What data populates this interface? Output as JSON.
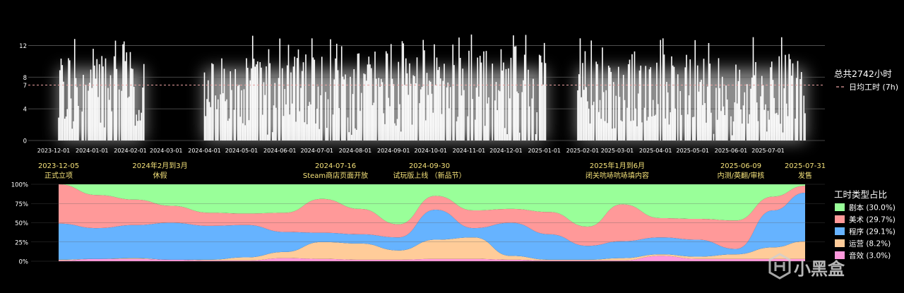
{
  "colors": {
    "background": "#000000",
    "bar": "#ffffff",
    "glow": "#ffffff",
    "grid": "#5a5a5a",
    "avg_line": "#e8a0a0",
    "milestone_text": "#f5e27a",
    "axis_text": "#ffffff"
  },
  "watermark": "小黑盒",
  "chart_data": [
    {
      "type": "bar",
      "title": "",
      "xlabel": "",
      "ylabel": "",
      "ylim": [
        0,
        14
      ],
      "yticks": [
        0,
        4,
        7,
        8,
        12
      ],
      "x_range": [
        "2023-11-15",
        "2025-07-31"
      ],
      "x_tick_labels": [
        "2023-12-01",
        "2024-01-01",
        "2024-02-01",
        "2024-03-01",
        "2024-04-01",
        "2024-05-01",
        "2024-06-01",
        "2024-07-01",
        "2024-08-01",
        "2024-09-01",
        "2024-10-01",
        "2024-11-01",
        "2024-12-01",
        "2025-01-01",
        "2025-02-01",
        "2025-03-01",
        "2025-04-01",
        "2025-05-01",
        "2025-06-01",
        "2025-07-01"
      ],
      "active_periods": [
        [
          "2023-12-05",
          "2024-02-12"
        ],
        [
          "2024-04-01",
          "2025-01-02"
        ],
        [
          "2025-01-28",
          "2025-07-31"
        ]
      ],
      "daily_hours_approx": "bars of 1–13.5 hours per day during active periods",
      "total_label": "总共2742小时",
      "avg_line": {
        "value": 7,
        "label": "日均工时 (7h)"
      },
      "grid": true,
      "legend_position": "right",
      "milestones": [
        {
          "date": "2023-12-05",
          "line1": "2023-12-05",
          "line2": "正式立项"
        },
        {
          "date": "2024-02-25",
          "line1": "2024年2月到3月",
          "line2": "休假"
        },
        {
          "date": "2024-07-16",
          "line1": "2024-07-16",
          "line2": "Steam商店页面开放"
        },
        {
          "date": "2024-09-30",
          "line1": "2024-09-30",
          "line2": "试玩版上线 （新品节）"
        },
        {
          "date": "2025-03-01",
          "line1": "2025年1月到6月",
          "line2": "闭关吭哧吭哧填内容"
        },
        {
          "date": "2025-06-09",
          "line1": "2025-06-09",
          "line2": "内测/英翻/审核"
        },
        {
          "date": "2025-07-31",
          "line1": "2025-07-31",
          "line2": "发售"
        }
      ]
    },
    {
      "type": "area",
      "stacked": "percent",
      "title": "工时类型占比",
      "yticks": [
        "100%",
        "75%",
        "50%",
        "25%",
        "0%"
      ],
      "x": [
        "2023-12-05",
        "2024-01-05",
        "2024-02-05",
        "2024-03-05",
        "2024-04-05",
        "2024-05-05",
        "2024-06-05",
        "2024-07-05",
        "2024-08-05",
        "2024-09-05",
        "2024-10-05",
        "2024-11-05",
        "2024-12-05",
        "2025-01-05",
        "2025-02-05",
        "2025-03-05",
        "2025-04-05",
        "2025-05-05",
        "2025-06-05",
        "2025-07-05",
        "2025-07-31"
      ],
      "series": [
        {
          "name": "音效 (3.0%)",
          "color": "#ff99dd",
          "values": [
            1,
            3,
            3,
            2,
            1,
            1,
            4,
            3,
            2,
            2,
            3,
            3,
            2,
            1,
            1,
            1,
            7,
            3,
            3,
            3,
            3
          ]
        },
        {
          "name": "运营 (8.2%)",
          "color": "#ffcc99",
          "values": [
            1,
            0,
            1,
            0,
            1,
            4,
            8,
            22,
            21,
            12,
            25,
            28,
            5,
            1,
            1,
            3,
            2,
            3,
            6,
            15,
            23
          ]
        },
        {
          "name": "程序 (29.1%)",
          "color": "#66b3ff",
          "values": [
            47,
            40,
            43,
            48,
            44,
            42,
            26,
            12,
            12,
            17,
            39,
            12,
            43,
            33,
            18,
            22,
            22,
            22,
            7,
            48,
            63
          ]
        },
        {
          "name": "美术 (29.7%)",
          "color": "#ff9999",
          "values": [
            51,
            43,
            33,
            22,
            17,
            15,
            25,
            44,
            33,
            17,
            18,
            23,
            18,
            29,
            25,
            48,
            25,
            27,
            37,
            18,
            9
          ]
        },
        {
          "name": "剧本 (30.0%)",
          "color": "#99ff99",
          "values": [
            0,
            14,
            20,
            28,
            37,
            38,
            37,
            19,
            32,
            52,
            15,
            34,
            32,
            36,
            55,
            26,
            44,
            45,
            47,
            16,
            2
          ]
        }
      ],
      "legend_position": "right"
    }
  ]
}
